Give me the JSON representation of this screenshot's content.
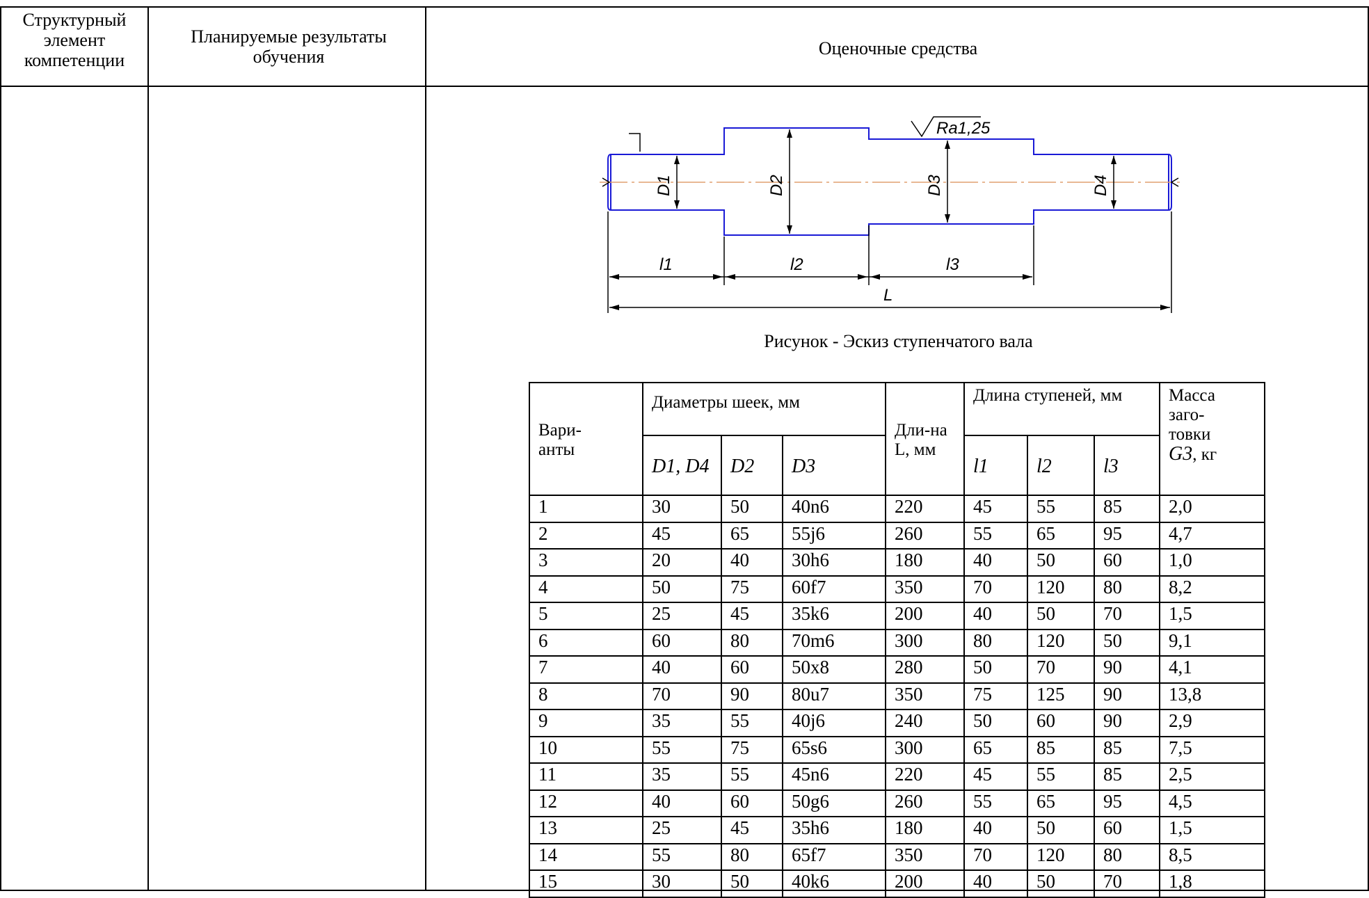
{
  "header": {
    "col1": "Структурный элемент компетенции",
    "col2": "Планируемые результаты обучения",
    "col3": "Оценочные средства"
  },
  "drawing": {
    "roughness": "Ra1,25",
    "diameters": [
      "D1",
      "D2",
      "D3",
      "D4"
    ],
    "lengths": [
      "l1",
      "l2",
      "l3"
    ],
    "total_length": "L",
    "caption": "Рисунок - Эскиз ступенчатого вала"
  },
  "variants_table": {
    "header": {
      "variants": "Вари-анты",
      "diameters": "Диаметры шеек, мм",
      "length": "Дли-на L, мм",
      "step_length": "Длина ступеней, мм",
      "mass": "Масса заго-товки",
      "mass_unit": ", кг",
      "d1d4": "D1, D4",
      "d2": "D2",
      "d3": "D3",
      "l1": "l1",
      "l2": "l2",
      "l3": "l3",
      "g3": "G3"
    },
    "rows": [
      [
        "1",
        "30",
        "50",
        "40n6",
        "220",
        "45",
        "55",
        "85",
        "2,0"
      ],
      [
        "2",
        "45",
        "65",
        "55j6",
        "260",
        "55",
        "65",
        "95",
        "4,7"
      ],
      [
        "3",
        "20",
        "40",
        "30h6",
        "180",
        "40",
        "50",
        "60",
        "1,0"
      ],
      [
        "4",
        "50",
        "75",
        "60f7",
        "350",
        "70",
        "120",
        "80",
        "8,2"
      ],
      [
        "5",
        "25",
        "45",
        "35k6",
        "200",
        "40",
        "50",
        "70",
        "1,5"
      ],
      [
        "6",
        "60",
        "80",
        "70m6",
        "300",
        "80",
        "120",
        "50",
        "9,1"
      ],
      [
        "7",
        "40",
        "60",
        "50x8",
        "280",
        "50",
        "70",
        "90",
        "4,1"
      ],
      [
        "8",
        "70",
        "90",
        "80u7",
        "350",
        "75",
        "125",
        "90",
        "13,8"
      ],
      [
        "9",
        "35",
        "55",
        "40j6",
        "240",
        "50",
        "60",
        "90",
        "2,9"
      ],
      [
        "10",
        "55",
        "75",
        "65s6",
        "300",
        "65",
        "85",
        "85",
        "7,5"
      ],
      [
        "11",
        "35",
        "55",
        "45n6",
        "220",
        "45",
        "55",
        "85",
        "2,5"
      ],
      [
        "12",
        "40",
        "60",
        "50g6",
        "260",
        "55",
        "65",
        "95",
        "4,5"
      ],
      [
        "13",
        "25",
        "45",
        "35h6",
        "180",
        "40",
        "50",
        "60",
        "1,5"
      ],
      [
        "14",
        "55",
        "80",
        "65f7",
        "350",
        "70",
        "120",
        "80",
        "8,5"
      ],
      [
        "15",
        "30",
        "50",
        "40k6",
        "200",
        "40",
        "50",
        "70",
        "1,8"
      ]
    ]
  },
  "colors": {
    "shaft_outline": "#1a1ad6",
    "center_line": "#e0a070"
  }
}
